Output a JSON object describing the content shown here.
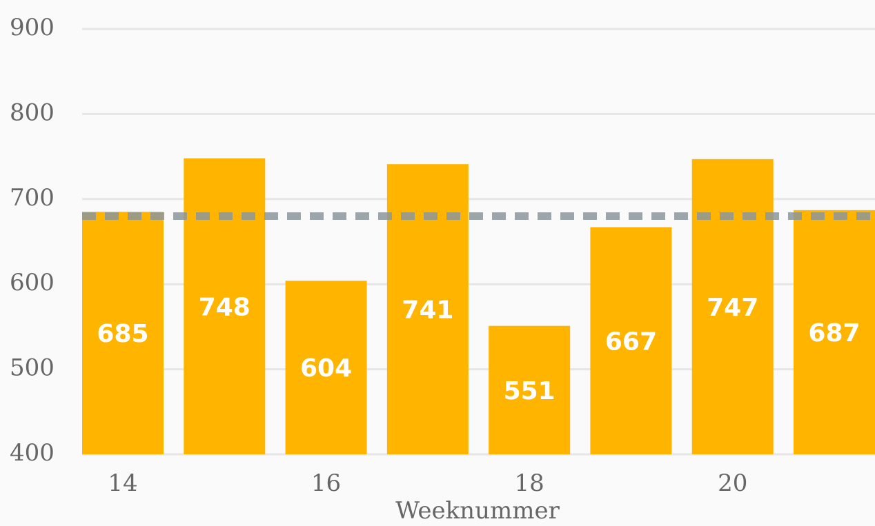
{
  "chart_data": {
    "type": "bar",
    "x_label": "Weeknummer",
    "categories": [
      "14",
      null,
      "16",
      null,
      "18",
      null,
      "20",
      null
    ],
    "values": [
      685,
      748,
      604,
      741,
      551,
      667,
      747,
      687
    ],
    "color": "#ffb400",
    "average_line": 680,
    "average_line_color": "#8c979b",
    "ylim": [
      400,
      900
    ],
    "yticks": [
      400,
      500,
      600,
      700,
      800,
      900
    ],
    "grid": true
  }
}
